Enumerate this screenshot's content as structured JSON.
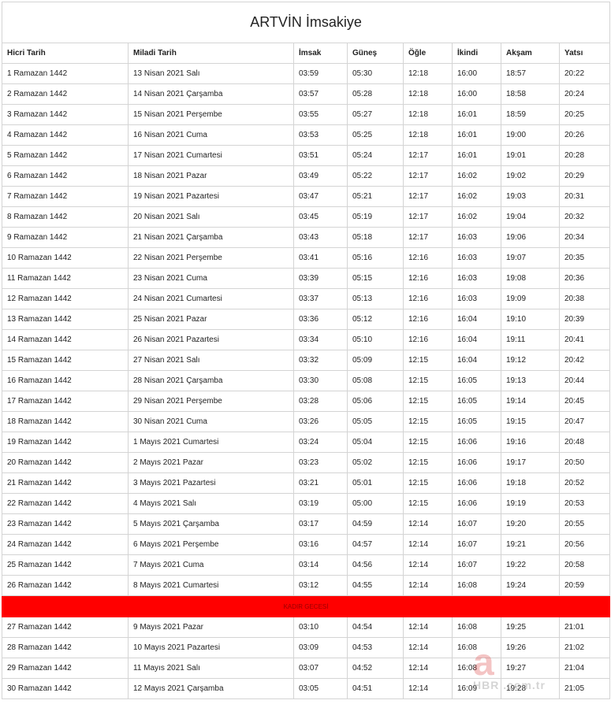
{
  "title": "ARTVİN İmsakiye",
  "columns": [
    "Hicri Tarih",
    "Miladi Tarih",
    "İmsak",
    "Güneş",
    "Öğle",
    "İkindi",
    "Akşam",
    "Yatsı"
  ],
  "rows": [
    [
      "1 Ramazan 1442",
      "13 Nisan 2021 Salı",
      "03:59",
      "05:30",
      "12:18",
      "16:00",
      "18:57",
      "20:22"
    ],
    [
      "2 Ramazan 1442",
      "14 Nisan 2021 Çarşamba",
      "03:57",
      "05:28",
      "12:18",
      "16:00",
      "18:58",
      "20:24"
    ],
    [
      "3 Ramazan 1442",
      "15 Nisan 2021 Perşembe",
      "03:55",
      "05:27",
      "12:18",
      "16:01",
      "18:59",
      "20:25"
    ],
    [
      "4 Ramazan 1442",
      "16 Nisan 2021 Cuma",
      "03:53",
      "05:25",
      "12:18",
      "16:01",
      "19:00",
      "20:26"
    ],
    [
      "5 Ramazan 1442",
      "17 Nisan 2021 Cumartesi",
      "03:51",
      "05:24",
      "12:17",
      "16:01",
      "19:01",
      "20:28"
    ],
    [
      "6 Ramazan 1442",
      "18 Nisan 2021 Pazar",
      "03:49",
      "05:22",
      "12:17",
      "16:02",
      "19:02",
      "20:29"
    ],
    [
      "7 Ramazan 1442",
      "19 Nisan 2021 Pazartesi",
      "03:47",
      "05:21",
      "12:17",
      "16:02",
      "19:03",
      "20:31"
    ],
    [
      "8 Ramazan 1442",
      "20 Nisan 2021 Salı",
      "03:45",
      "05:19",
      "12:17",
      "16:02",
      "19:04",
      "20:32"
    ],
    [
      "9 Ramazan 1442",
      "21 Nisan 2021 Çarşamba",
      "03:43",
      "05:18",
      "12:17",
      "16:03",
      "19:06",
      "20:34"
    ],
    [
      "10 Ramazan 1442",
      "22 Nisan 2021 Perşembe",
      "03:41",
      "05:16",
      "12:16",
      "16:03",
      "19:07",
      "20:35"
    ],
    [
      "11 Ramazan 1442",
      "23 Nisan 2021 Cuma",
      "03:39",
      "05:15",
      "12:16",
      "16:03",
      "19:08",
      "20:36"
    ],
    [
      "12 Ramazan 1442",
      "24 Nisan 2021 Cumartesi",
      "03:37",
      "05:13",
      "12:16",
      "16:03",
      "19:09",
      "20:38"
    ],
    [
      "13 Ramazan 1442",
      "25 Nisan 2021 Pazar",
      "03:36",
      "05:12",
      "12:16",
      "16:04",
      "19:10",
      "20:39"
    ],
    [
      "14 Ramazan 1442",
      "26 Nisan 2021 Pazartesi",
      "03:34",
      "05:10",
      "12:16",
      "16:04",
      "19:11",
      "20:41"
    ],
    [
      "15 Ramazan 1442",
      "27 Nisan 2021 Salı",
      "03:32",
      "05:09",
      "12:15",
      "16:04",
      "19:12",
      "20:42"
    ],
    [
      "16 Ramazan 1442",
      "28 Nisan 2021 Çarşamba",
      "03:30",
      "05:08",
      "12:15",
      "16:05",
      "19:13",
      "20:44"
    ],
    [
      "17 Ramazan 1442",
      "29 Nisan 2021 Perşembe",
      "03:28",
      "05:06",
      "12:15",
      "16:05",
      "19:14",
      "20:45"
    ],
    [
      "18 Ramazan 1442",
      "30 Nisan 2021 Cuma",
      "03:26",
      "05:05",
      "12:15",
      "16:05",
      "19:15",
      "20:47"
    ],
    [
      "19 Ramazan 1442",
      "1 Mayıs 2021 Cumartesi",
      "03:24",
      "05:04",
      "12:15",
      "16:06",
      "19:16",
      "20:48"
    ],
    [
      "20 Ramazan 1442",
      "2 Mayıs 2021 Pazar",
      "03:23",
      "05:02",
      "12:15",
      "16:06",
      "19:17",
      "20:50"
    ],
    [
      "21 Ramazan 1442",
      "3 Mayıs 2021 Pazartesi",
      "03:21",
      "05:01",
      "12:15",
      "16:06",
      "19:18",
      "20:52"
    ],
    [
      "22 Ramazan 1442",
      "4 Mayıs 2021 Salı",
      "03:19",
      "05:00",
      "12:15",
      "16:06",
      "19:19",
      "20:53"
    ],
    [
      "23 Ramazan 1442",
      "5 Mayıs 2021 Çarşamba",
      "03:17",
      "04:59",
      "12:14",
      "16:07",
      "19:20",
      "20:55"
    ],
    [
      "24 Ramazan 1442",
      "6 Mayıs 2021 Perşembe",
      "03:16",
      "04:57",
      "12:14",
      "16:07",
      "19:21",
      "20:56"
    ],
    [
      "25 Ramazan 1442",
      "7 Mayıs 2021 Cuma",
      "03:14",
      "04:56",
      "12:14",
      "16:07",
      "19:22",
      "20:58"
    ],
    [
      "26 Ramazan 1442",
      "8 Mayıs 2021 Cumartesi",
      "03:12",
      "04:55",
      "12:14",
      "16:08",
      "19:24",
      "20:59"
    ]
  ],
  "highlight": {
    "label": "KADIR GECESİ",
    "color": "#ff0000"
  },
  "rows_after": [
    [
      "27 Ramazan 1442",
      "9 Mayıs 2021 Pazar",
      "03:10",
      "04:54",
      "12:14",
      "16:08",
      "19:25",
      "21:01"
    ],
    [
      "28 Ramazan 1442",
      "10 Mayıs 2021 Pazartesi",
      "03:09",
      "04:53",
      "12:14",
      "16:08",
      "19:26",
      "21:02"
    ],
    [
      "29 Ramazan 1442",
      "11 Mayıs 2021 Salı",
      "03:07",
      "04:52",
      "12:14",
      "16:08",
      "19:27",
      "21:04"
    ],
    [
      "30 Ramazan 1442",
      "12 Mayıs 2021 Çarşamba",
      "03:05",
      "04:51",
      "12:14",
      "16:09",
      "19:28",
      "21:05"
    ]
  ],
  "watermark": {
    "letter": "a",
    "text": "HBR .com.tr"
  }
}
